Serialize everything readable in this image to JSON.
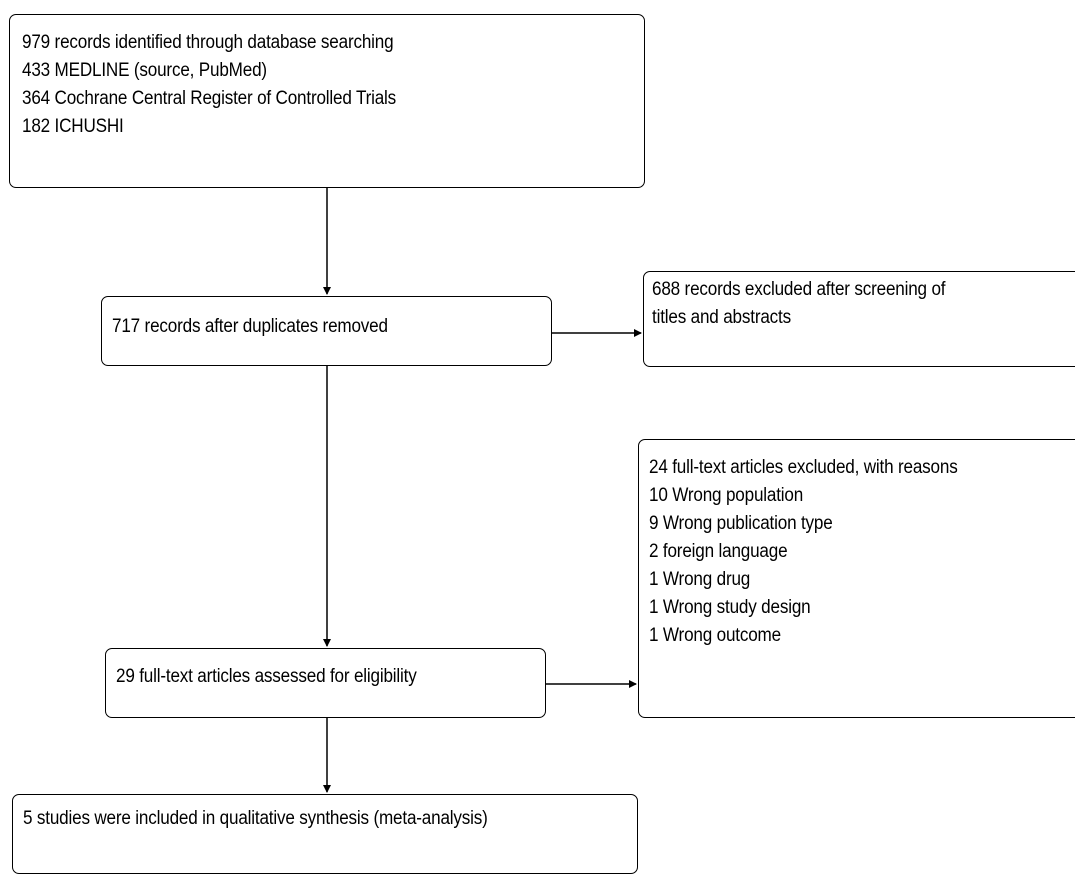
{
  "boxes": {
    "search": {
      "lines": [
        "979 records identified through database searching",
        "433 MEDLINE (source, PubMed)",
        "364 Cochrane Central Register of Controlled Trials",
        "182 ICHUSHI"
      ]
    },
    "dedup": {
      "lines": [
        "717 records after duplicates removed"
      ]
    },
    "excluded_screening": {
      "lines": [
        "688 records excluded after screening of",
        "titles and abstracts"
      ]
    },
    "fulltext": {
      "lines": [
        "29 full-text articles assessed for eligibility"
      ]
    },
    "excluded_fulltext": {
      "lines": [
        "24 full-text articles excluded, with reasons",
        "10 Wrong population",
        "9 Wrong publication type",
        "2 foreign language",
        "1 Wrong drug",
        "1 Wrong study design",
        "1 Wrong outcome"
      ]
    },
    "included": {
      "lines": [
        "5 studies were included in qualitative synthesis (meta-analysis)"
      ]
    }
  }
}
